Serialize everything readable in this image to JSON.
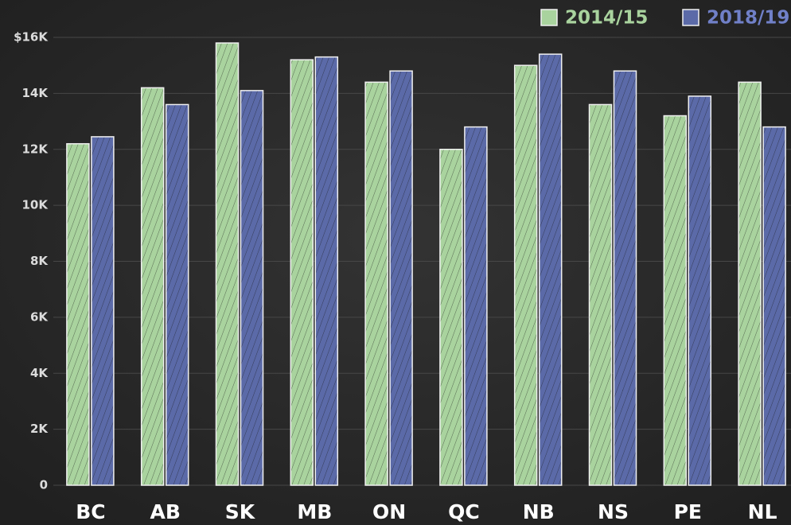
{
  "chart_data": {
    "type": "bar",
    "categories": [
      "BC",
      "AB",
      "SK",
      "MB",
      "ON",
      "QC",
      "NB",
      "NS",
      "PE",
      "NL"
    ],
    "series": [
      {
        "name": "2014/15",
        "color": "#a9d39e",
        "values": [
          12200,
          14200,
          15800,
          15200,
          14400,
          12000,
          15000,
          13600,
          13200,
          14400
        ]
      },
      {
        "name": "2018/19",
        "color": "#5b6aa8",
        "values": [
          12450,
          13600,
          14100,
          15300,
          14800,
          12800,
          15400,
          14800,
          13900,
          12800
        ]
      }
    ],
    "ylim": [
      0,
      16000
    ],
    "yticks": [
      0,
      {
        "value": 2000,
        "label": "2K"
      },
      {
        "value": 4000,
        "label": "4K"
      },
      {
        "value": 6000,
        "label": "6K"
      },
      {
        "value": 8000,
        "label": "8K"
      },
      {
        "value": 10000,
        "label": "10K"
      },
      {
        "value": 12000,
        "label": "12K"
      },
      {
        "value": 14000,
        "label": "14K"
      },
      {
        "value": 16000,
        "label": "$16K"
      }
    ],
    "grid": true,
    "legend": "top-right"
  }
}
